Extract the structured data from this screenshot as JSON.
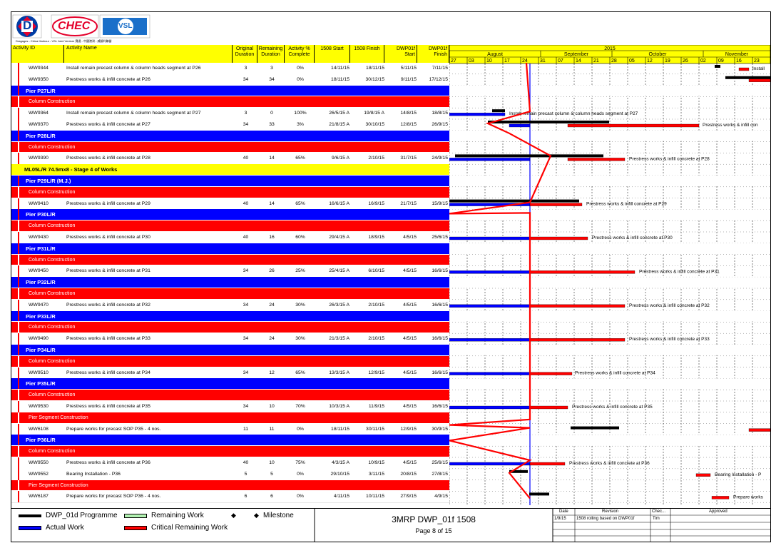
{
  "logos": {
    "logo1_letter": "D",
    "logo2_text": "CHEC",
    "logo3_text": "VSL",
    "caption": "Dragages - China Harbour - VSL Joint Venture 寶達 - 中國港灣 - 威勝利聯營"
  },
  "columns": {
    "activity_id": "Activity ID",
    "activity_name": "Activity Name",
    "orig_dur_1": "Original",
    "orig_dur_2": "Duration",
    "rem_dur_1": "Remaining",
    "rem_dur_2": "Duration",
    "pct_1": "Activity %",
    "pct_2": "Complete",
    "start": "1508 Start",
    "finish": "1508 Finish",
    "dwp_start_1": "DWP01f",
    "dwp_start_2": "Start",
    "dwp_finish_1": "DWP01f",
    "dwp_finish_2": "Finish"
  },
  "timescale": {
    "year": "2015",
    "months": [
      "August",
      "September",
      "October",
      "November"
    ],
    "weeks": [
      "27",
      "03",
      "10",
      "17",
      "24",
      "31",
      "07",
      "14",
      "21",
      "28",
      "05",
      "12",
      "19",
      "26",
      "02",
      "09",
      "16",
      "23"
    ]
  },
  "rows": [
    {
      "type": "act",
      "id": "WW9344",
      "name": "Install remain precast column & column heads segment at P26",
      "od": "3",
      "rd": "3",
      "pct": "0%",
      "s": "14/11/15",
      "f": "18/11/15",
      "ds": "5/11/15",
      "df": "7/11/15"
    },
    {
      "type": "act",
      "id": "WW9350",
      "name": "Prestress works & infill concrete at P26",
      "od": "34",
      "rd": "34",
      "pct": "0%",
      "s": "18/11/15",
      "f": "30/12/15",
      "ds": "9/11/15",
      "df": "17/12/15"
    },
    {
      "type": "blue",
      "label": "Pier P27L/R"
    },
    {
      "type": "red",
      "label": "Column Construction"
    },
    {
      "type": "act",
      "id": "WW9364",
      "name": "Install remain precast column & column heads segment at P27",
      "od": "3",
      "rd": "0",
      "pct": "100%",
      "s": "26/5/15 A",
      "f": "19/8/15 A",
      "ds": "14/8/15",
      "df": "18/8/15"
    },
    {
      "type": "act",
      "id": "WW9370",
      "name": "Prestress works & infill concrete at P27",
      "od": "34",
      "rd": "33",
      "pct": "3%",
      "s": "21/8/15 A",
      "f": "30/10/15",
      "ds": "12/8/15",
      "df": "26/9/15"
    },
    {
      "type": "blue",
      "label": "Pier P28L/R"
    },
    {
      "type": "red",
      "label": "Column Construction"
    },
    {
      "type": "act",
      "id": "WW9390",
      "name": "Prestress works & infill concrete at P28",
      "od": "40",
      "rd": "14",
      "pct": "65%",
      "s": "9/6/15 A",
      "f": "2/10/15",
      "ds": "31/7/15",
      "df": "24/9/15"
    },
    {
      "type": "yellow",
      "label": "ML05L/R 74.5mx8 - Stage 4 of Works"
    },
    {
      "type": "blue",
      "label": "Pier P29L/R (M.J.)"
    },
    {
      "type": "red",
      "label": "Column Construction"
    },
    {
      "type": "act",
      "id": "WW9410",
      "name": "Prestress works & infill concrete at P29",
      "od": "40",
      "rd": "14",
      "pct": "65%",
      "s": "16/6/15 A",
      "f": "16/9/15",
      "ds": "21/7/15",
      "df": "15/9/15"
    },
    {
      "type": "blue",
      "label": "Pier P30L/R"
    },
    {
      "type": "red",
      "label": "Column Construction"
    },
    {
      "type": "act",
      "id": "WW9430",
      "name": "Prestress works & infill concrete at P30",
      "od": "40",
      "rd": "16",
      "pct": "60%",
      "s": "29/4/15 A",
      "f": "18/9/15",
      "ds": "4/5/15",
      "df": "25/6/15"
    },
    {
      "type": "blue",
      "label": "Pier P31L/R"
    },
    {
      "type": "red",
      "label": "Column Construction"
    },
    {
      "type": "act",
      "id": "WW9450",
      "name": "Prestress works & infill concrete at P31",
      "od": "34",
      "rd": "26",
      "pct": "25%",
      "s": "25/4/15 A",
      "f": "6/10/15",
      "ds": "4/5/15",
      "df": "16/6/15"
    },
    {
      "type": "blue",
      "label": "Pier P32L/R"
    },
    {
      "type": "red",
      "label": "Column Construction"
    },
    {
      "type": "act",
      "id": "WW9470",
      "name": "Prestress works & infill concrete at P32",
      "od": "34",
      "rd": "24",
      "pct": "30%",
      "s": "26/3/15 A",
      "f": "2/10/15",
      "ds": "4/5/15",
      "df": "16/6/15"
    },
    {
      "type": "blue",
      "label": "Pier P33L/R"
    },
    {
      "type": "red",
      "label": "Column Construction"
    },
    {
      "type": "act",
      "id": "WW9490",
      "name": "Prestress works & infill concrete at P33",
      "od": "34",
      "rd": "24",
      "pct": "30%",
      "s": "21/3/15 A",
      "f": "2/10/15",
      "ds": "4/5/15",
      "df": "16/6/15"
    },
    {
      "type": "blue",
      "label": "Pier P34L/R"
    },
    {
      "type": "red",
      "label": "Column Construction"
    },
    {
      "type": "act",
      "id": "WW9510",
      "name": "Prestress works & infill concrete at P34",
      "od": "34",
      "rd": "12",
      "pct": "65%",
      "s": "13/3/15 A",
      "f": "12/9/15",
      "ds": "4/5/15",
      "df": "16/6/15"
    },
    {
      "type": "blue",
      "label": "Pier P35L/R"
    },
    {
      "type": "red",
      "label": "Column Construction"
    },
    {
      "type": "act",
      "id": "WW9530",
      "name": "Prestress works & infill concrete at P35",
      "od": "34",
      "rd": "10",
      "pct": "70%",
      "s": "10/3/15 A",
      "f": "11/9/15",
      "ds": "4/5/15",
      "df": "16/6/15"
    },
    {
      "type": "red",
      "label": "Pier Segment Construction"
    },
    {
      "type": "act",
      "id": "WW6108",
      "name": "Prepare works for precast SOP P35 - 4 nos.",
      "od": "11",
      "rd": "11",
      "pct": "0%",
      "s": "18/11/15",
      "f": "30/11/15",
      "ds": "12/9/15",
      "df": "30/9/15"
    },
    {
      "type": "blue",
      "label": "Pier P36L/R"
    },
    {
      "type": "red",
      "label": "Column Construction"
    },
    {
      "type": "act",
      "id": "WW9550",
      "name": "Prestress works & infill concrete at P36",
      "od": "40",
      "rd": "10",
      "pct": "75%",
      "s": "4/3/15 A",
      "f": "10/9/15",
      "ds": "4/5/15",
      "df": "25/6/15"
    },
    {
      "type": "act",
      "id": "WW9552",
      "name": "Bearing Installation - P36",
      "od": "5",
      "rd": "5",
      "pct": "0%",
      "s": "29/10/15",
      "f": "3/11/15",
      "ds": "20/8/15",
      "df": "27/8/15"
    },
    {
      "type": "red",
      "label": "Pier Segment Construction"
    },
    {
      "type": "act",
      "id": "WW6187",
      "name": "Prepare works for precast SOP P36 - 4 nos.",
      "od": "6",
      "rd": "6",
      "pct": "0%",
      "s": "4/11/15",
      "f": "10/11/15",
      "ds": "27/9/15",
      "df": "4/9/15"
    }
  ],
  "gantt_labels": [
    "Install",
    "Install remain precast column & column heads segment at P27",
    "Prestress works & infill con",
    "Prestress works & infill concrete at P28",
    "Prestress works & infill concrete at P29",
    "Prestress works & infill concrete at P30",
    "Prestress works & infill concrete at P31",
    "Prestress works & infill concrete at P32",
    "Prestress works & infill concrete at P33",
    "Prestress works & infill concrete at P34",
    "Prestress works & infill concrete at P35",
    "Prestress works & infill concrete at P36",
    "Bearing Installation - P",
    "Prepare works"
  ],
  "legend": {
    "baseline": "DWP_01d Programme",
    "remaining": "Remaining Work",
    "milestone": "Milestone",
    "actual": "Actual Work",
    "critical": "Critical Remaining Work"
  },
  "title_block": {
    "title": "3MRP DWP_01f 1508",
    "page": "Page 8 of 15"
  },
  "revision_table": {
    "h_date": "Date",
    "h_revision": "Revision",
    "h_checked": "Chec...",
    "h_approved": "Approved",
    "date": "1/9/15",
    "revision": "1508 rolling based on DWP01f",
    "checked": "Tim"
  },
  "colors": {
    "header": "#ffff00",
    "wbs_pier": "#0000ff",
    "wbs_sub": "#ff0000",
    "actual": "#0000ff",
    "critical": "#ff0000",
    "baseline": "#000000",
    "remaining": "#b2f2b2"
  }
}
